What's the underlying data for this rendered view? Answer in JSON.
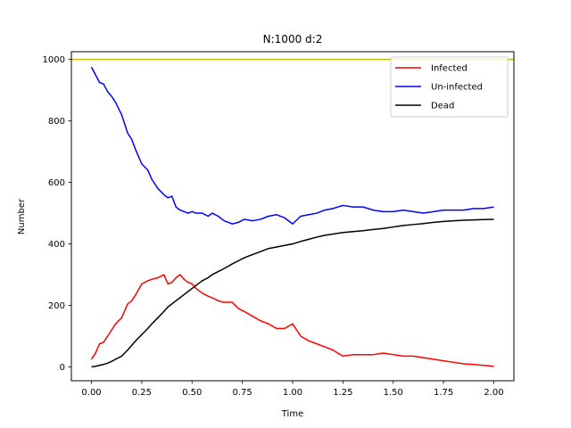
{
  "chart_data": {
    "type": "line",
    "title": "N:1000 d:2",
    "xlabel": "Time",
    "ylabel": "Number",
    "xlim": [
      -0.1,
      2.1
    ],
    "ylim": [
      -45,
      1025
    ],
    "xticks": [
      0.0,
      0.25,
      0.5,
      0.75,
      1.0,
      1.25,
      1.5,
      1.75,
      2.0
    ],
    "xtick_labels": [
      "0.00",
      "0.25",
      "0.50",
      "0.75",
      "1.00",
      "1.25",
      "1.50",
      "1.75",
      "2.00"
    ],
    "yticks": [
      0,
      200,
      400,
      600,
      800,
      1000
    ],
    "ytick_labels": [
      "0",
      "200",
      "400",
      "600",
      "800",
      "1000"
    ],
    "grid": false,
    "legend_position": "top-right",
    "hline": {
      "y": 1000,
      "color": "#bfbf00"
    },
    "series": [
      {
        "name": "Infected",
        "color": "#ff0000",
        "x": [
          0.0,
          0.02,
          0.04,
          0.06,
          0.08,
          0.1,
          0.12,
          0.15,
          0.18,
          0.2,
          0.22,
          0.25,
          0.28,
          0.3,
          0.33,
          0.36,
          0.38,
          0.4,
          0.42,
          0.44,
          0.46,
          0.48,
          0.5,
          0.52,
          0.55,
          0.58,
          0.6,
          0.63,
          0.66,
          0.7,
          0.73,
          0.76,
          0.8,
          0.84,
          0.88,
          0.92,
          0.96,
          1.0,
          1.04,
          1.08,
          1.12,
          1.16,
          1.2,
          1.25,
          1.3,
          1.35,
          1.4,
          1.45,
          1.5,
          1.55,
          1.6,
          1.65,
          1.7,
          1.75,
          1.8,
          1.85,
          1.9,
          1.95,
          2.0
        ],
        "y": [
          25,
          45,
          75,
          80,
          100,
          120,
          140,
          160,
          205,
          215,
          235,
          270,
          280,
          285,
          290,
          300,
          270,
          275,
          290,
          300,
          285,
          275,
          270,
          255,
          240,
          230,
          225,
          215,
          210,
          210,
          190,
          180,
          165,
          150,
          140,
          125,
          125,
          140,
          100,
          85,
          75,
          65,
          55,
          35,
          40,
          40,
          40,
          45,
          40,
          35,
          35,
          30,
          25,
          20,
          15,
          10,
          8,
          5,
          2
        ]
      },
      {
        "name": "Un-infected",
        "color": "#0000ff",
        "x": [
          0.0,
          0.02,
          0.04,
          0.06,
          0.08,
          0.1,
          0.12,
          0.15,
          0.18,
          0.2,
          0.22,
          0.25,
          0.28,
          0.3,
          0.33,
          0.36,
          0.38,
          0.4,
          0.42,
          0.44,
          0.46,
          0.48,
          0.5,
          0.52,
          0.55,
          0.58,
          0.6,
          0.63,
          0.66,
          0.7,
          0.73,
          0.76,
          0.8,
          0.84,
          0.88,
          0.92,
          0.96,
          1.0,
          1.04,
          1.08,
          1.12,
          1.16,
          1.2,
          1.25,
          1.3,
          1.35,
          1.4,
          1.45,
          1.5,
          1.55,
          1.6,
          1.65,
          1.7,
          1.75,
          1.8,
          1.85,
          1.9,
          1.95,
          2.0
        ],
        "y": [
          975,
          950,
          925,
          920,
          895,
          880,
          860,
          820,
          760,
          740,
          705,
          660,
          640,
          610,
          580,
          560,
          550,
          555,
          520,
          510,
          505,
          500,
          505,
          500,
          500,
          490,
          500,
          490,
          475,
          465,
          470,
          480,
          475,
          480,
          490,
          495,
          485,
          465,
          490,
          495,
          500,
          510,
          515,
          525,
          520,
          520,
          510,
          505,
          505,
          510,
          505,
          500,
          505,
          510,
          510,
          510,
          515,
          515,
          520
        ]
      },
      {
        "name": "Dead",
        "color": "#000000",
        "x": [
          0.0,
          0.02,
          0.04,
          0.06,
          0.08,
          0.1,
          0.12,
          0.15,
          0.18,
          0.2,
          0.22,
          0.25,
          0.28,
          0.3,
          0.33,
          0.36,
          0.38,
          0.4,
          0.42,
          0.44,
          0.46,
          0.48,
          0.5,
          0.52,
          0.55,
          0.58,
          0.6,
          0.63,
          0.66,
          0.7,
          0.73,
          0.76,
          0.8,
          0.84,
          0.88,
          0.92,
          0.96,
          1.0,
          1.04,
          1.08,
          1.12,
          1.16,
          1.2,
          1.25,
          1.3,
          1.35,
          1.4,
          1.45,
          1.5,
          1.55,
          1.6,
          1.65,
          1.7,
          1.75,
          1.8,
          1.85,
          1.9,
          1.95,
          2.0
        ],
        "y": [
          0,
          2,
          5,
          8,
          12,
          18,
          25,
          35,
          55,
          70,
          85,
          105,
          125,
          140,
          160,
          180,
          195,
          205,
          215,
          225,
          235,
          245,
          255,
          265,
          280,
          290,
          300,
          310,
          320,
          335,
          345,
          355,
          365,
          375,
          385,
          390,
          395,
          400,
          408,
          415,
          422,
          428,
          432,
          437,
          440,
          443,
          447,
          450,
          455,
          460,
          463,
          466,
          470,
          473,
          475,
          477,
          478,
          479,
          480
        ]
      }
    ]
  }
}
